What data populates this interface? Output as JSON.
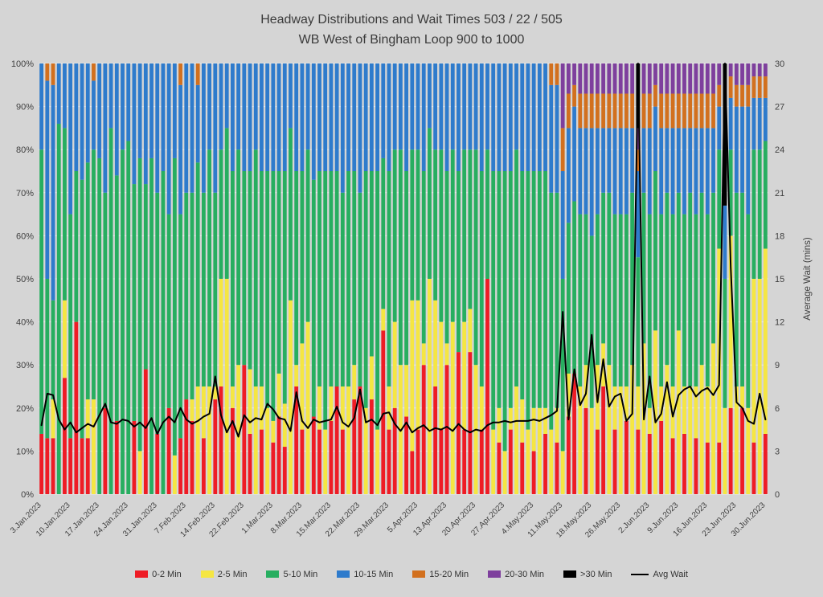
{
  "colors": {
    "background": "#d5d5d5",
    "grid": "#ffffff",
    "text": "#3a3a3a",
    "axis_text": "#3f3f3f"
  },
  "chart_data": {
    "type": "bar",
    "stacked": true,
    "stack_unit": "percent",
    "overlay_line": true,
    "grid": true,
    "legend_position": "bottom",
    "title": "Headway Distributions and Wait Times 503 / 22 / 505",
    "subtitle": "WB West of Bingham Loop 900 to 1000",
    "ylabel_right": "Average Wait (mins)",
    "ylim_left_percent": [
      0,
      100
    ],
    "ylim_right": [
      0,
      30
    ],
    "y_ticks_left": [
      "0%",
      "10%",
      "20%",
      "30%",
      "40%",
      "50%",
      "60%",
      "70%",
      "80%",
      "90%",
      "100%"
    ],
    "y_ticks_right": [
      "0",
      "3",
      "6",
      "9",
      "12",
      "15",
      "18",
      "21",
      "24",
      "27",
      "30"
    ],
    "x_tick_every": 5,
    "x_tick_labels": [
      "3.Jan.2023",
      "10.Jan.2023",
      "17.Jan.2023",
      "24.Jan.2023",
      "31.Jan.2023",
      "7.Feb.2023",
      "14.Feb.2023",
      "22.Feb.2023",
      "1.Mar.2023",
      "8.Mar.2023",
      "15.Mar.2023",
      "22.Mar.2023",
      "29.Mar.2023",
      "5.Apr.2023",
      "13.Apr.2023",
      "20.Apr.2023",
      "27.Apr.2023",
      "4.May.2023",
      "11.May.2023",
      "18.May.2023",
      "26.May.2023",
      "2.Jun.2023",
      "9.Jun.2023",
      "16.Jun.2023",
      "23.Jun.2023",
      "30.Jun.2023"
    ],
    "series": [
      {
        "name": "0-2 Min",
        "color": "#ee1c25",
        "values": [
          14,
          13,
          13,
          0,
          27,
          13,
          40,
          13,
          13,
          0,
          0,
          20,
          0,
          17,
          0,
          0,
          17,
          0,
          29,
          0,
          14,
          0,
          20,
          0,
          13,
          22,
          17,
          0,
          13,
          0,
          22,
          25,
          0,
          20,
          0,
          30,
          14,
          0,
          15,
          0,
          12,
          18,
          11,
          0,
          25,
          15,
          0,
          18,
          15,
          0,
          17,
          25,
          15,
          0,
          22,
          25,
          0,
          22,
          0,
          38,
          15,
          20,
          0,
          18,
          10,
          15,
          30,
          0,
          25,
          15,
          30,
          0,
          33,
          15,
          33,
          0,
          15,
          50,
          0,
          12,
          0,
          15,
          0,
          12,
          0,
          10,
          0,
          14,
          0,
          12,
          0,
          18,
          28,
          0,
          20,
          0,
          15,
          25,
          0,
          15,
          0,
          17,
          0,
          15,
          0,
          14,
          0,
          17,
          0,
          13,
          0,
          14,
          0,
          13,
          0,
          12,
          0,
          12,
          0,
          20,
          0,
          20,
          0,
          12,
          0,
          14
        ]
      },
      {
        "name": "2-5 Min",
        "color": "#f5e642",
        "values": [
          0,
          0,
          9,
          0,
          18,
          0,
          0,
          0,
          9,
          22,
          0,
          0,
          0,
          0,
          0,
          0,
          0,
          10,
          0,
          0,
          0,
          0,
          0,
          9,
          0,
          0,
          5,
          25,
          12,
          25,
          3,
          25,
          50,
          5,
          30,
          0,
          15,
          25,
          10,
          20,
          5,
          10,
          10,
          45,
          5,
          20,
          40,
          0,
          10,
          15,
          8,
          0,
          10,
          25,
          8,
          0,
          20,
          10,
          15,
          5,
          10,
          20,
          30,
          12,
          35,
          30,
          5,
          50,
          20,
          25,
          5,
          40,
          0,
          25,
          10,
          30,
          10,
          0,
          15,
          8,
          10,
          5,
          25,
          10,
          15,
          10,
          20,
          6,
          15,
          8,
          10,
          10,
          0,
          25,
          10,
          20,
          15,
          10,
          30,
          10,
          25,
          8,
          30,
          10,
          35,
          6,
          38,
          8,
          30,
          12,
          38,
          11,
          25,
          12,
          30,
          13,
          35,
          45,
          20,
          40,
          25,
          5,
          20,
          38,
          50,
          43
        ]
      },
      {
        "name": "5-10 Min",
        "color": "#27ae60",
        "values": [
          66,
          37,
          23,
          86,
          40,
          52,
          35,
          60,
          55,
          58,
          78,
          50,
          85,
          57,
          80,
          82,
          55,
          68,
          43,
          78,
          56,
          75,
          45,
          69,
          52,
          48,
          48,
          52,
          45,
          55,
          45,
          30,
          35,
          50,
          50,
          45,
          46,
          55,
          50,
          55,
          58,
          47,
          54,
          40,
          45,
          40,
          40,
          55,
          50,
          60,
          50,
          50,
          45,
          50,
          45,
          45,
          55,
          43,
          60,
          35,
          50,
          40,
          50,
          45,
          35,
          35,
          40,
          35,
          35,
          40,
          40,
          40,
          42,
          40,
          37,
          50,
          50,
          30,
          60,
          55,
          65,
          55,
          55,
          53,
          60,
          55,
          55,
          55,
          55,
          50,
          40,
          35,
          40,
          40,
          35,
          40,
          35,
          35,
          40,
          40,
          40,
          40,
          40,
          30,
          35,
          45,
          37,
          40,
          40,
          40,
          32,
          40,
          45,
          40,
          40,
          40,
          35,
          23,
          30,
          20,
          45,
          45,
          45,
          30,
          30,
          25
        ]
      },
      {
        "name": "10-15 Min",
        "color": "#2e7bcc",
        "values": [
          20,
          46,
          50,
          14,
          15,
          35,
          25,
          27,
          23,
          16,
          22,
          30,
          15,
          26,
          20,
          18,
          28,
          22,
          28,
          22,
          30,
          25,
          35,
          22,
          30,
          30,
          30,
          18,
          30,
          20,
          30,
          20,
          15,
          25,
          20,
          25,
          25,
          20,
          25,
          25,
          25,
          25,
          25,
          15,
          25,
          25,
          20,
          27,
          25,
          25,
          25,
          25,
          30,
          25,
          25,
          30,
          25,
          25,
          25,
          22,
          25,
          20,
          20,
          25,
          20,
          20,
          25,
          15,
          20,
          20,
          25,
          20,
          25,
          20,
          20,
          20,
          25,
          20,
          25,
          25,
          25,
          25,
          20,
          25,
          25,
          25,
          25,
          25,
          25,
          25,
          25,
          22,
          22,
          20,
          20,
          25,
          20,
          15,
          15,
          20,
          20,
          20,
          15,
          20,
          15,
          20,
          15,
          20,
          15,
          20,
          15,
          20,
          15,
          20,
          15,
          20,
          15,
          10,
          17,
          12,
          20,
          20,
          25,
          12,
          12,
          10
        ]
      },
      {
        "name": "15-20 Min",
        "color": "#d2701e",
        "values": [
          0,
          4,
          5,
          0,
          0,
          0,
          0,
          0,
          0,
          4,
          0,
          0,
          0,
          0,
          0,
          0,
          0,
          0,
          0,
          0,
          0,
          0,
          0,
          0,
          5,
          0,
          0,
          5,
          0,
          0,
          0,
          0,
          0,
          0,
          0,
          0,
          0,
          0,
          0,
          0,
          0,
          0,
          0,
          0,
          0,
          0,
          0,
          0,
          0,
          0,
          0,
          0,
          0,
          0,
          0,
          0,
          0,
          0,
          0,
          0,
          0,
          0,
          0,
          0,
          0,
          0,
          0,
          0,
          0,
          0,
          0,
          0,
          0,
          0,
          0,
          0,
          0,
          0,
          0,
          0,
          0,
          0,
          0,
          0,
          0,
          0,
          0,
          0,
          5,
          5,
          10,
          8,
          5,
          8,
          8,
          8,
          8,
          8,
          8,
          8,
          8,
          8,
          8,
          5,
          8,
          8,
          5,
          8,
          8,
          8,
          8,
          8,
          8,
          8,
          8,
          8,
          8,
          5,
          0,
          5,
          5,
          5,
          5,
          5,
          5,
          5
        ]
      },
      {
        "name": "20-30 Min",
        "color": "#7e3f9d",
        "values": [
          0,
          0,
          0,
          0,
          0,
          0,
          0,
          0,
          0,
          0,
          0,
          0,
          0,
          0,
          0,
          0,
          0,
          0,
          0,
          0,
          0,
          0,
          0,
          0,
          0,
          0,
          0,
          0,
          0,
          0,
          0,
          0,
          0,
          0,
          0,
          0,
          0,
          0,
          0,
          0,
          0,
          0,
          0,
          0,
          0,
          0,
          0,
          0,
          0,
          0,
          0,
          0,
          0,
          0,
          0,
          0,
          0,
          0,
          0,
          0,
          0,
          0,
          0,
          0,
          0,
          0,
          0,
          0,
          0,
          0,
          0,
          0,
          0,
          0,
          0,
          0,
          0,
          0,
          0,
          0,
          0,
          0,
          0,
          0,
          0,
          0,
          0,
          0,
          0,
          0,
          15,
          7,
          5,
          7,
          7,
          7,
          7,
          7,
          7,
          7,
          7,
          7,
          7,
          5,
          7,
          7,
          5,
          7,
          7,
          7,
          7,
          7,
          7,
          7,
          7,
          7,
          7,
          5,
          0,
          3,
          5,
          5,
          5,
          3,
          3,
          3
        ]
      },
      {
        "name": ">30 Min",
        "color": "#000000",
        "values": [
          0,
          0,
          0,
          0,
          0,
          0,
          0,
          0,
          0,
          0,
          0,
          0,
          0,
          0,
          0,
          0,
          0,
          0,
          0,
          0,
          0,
          0,
          0,
          0,
          0,
          0,
          0,
          0,
          0,
          0,
          0,
          0,
          0,
          0,
          0,
          0,
          0,
          0,
          0,
          0,
          0,
          0,
          0,
          0,
          0,
          0,
          0,
          0,
          0,
          0,
          0,
          0,
          0,
          0,
          0,
          0,
          0,
          0,
          0,
          0,
          0,
          0,
          0,
          0,
          0,
          0,
          0,
          0,
          0,
          0,
          0,
          0,
          0,
          0,
          0,
          0,
          0,
          0,
          0,
          0,
          0,
          0,
          0,
          0,
          0,
          0,
          0,
          0,
          0,
          0,
          0,
          0,
          0,
          0,
          0,
          0,
          0,
          0,
          0,
          0,
          0,
          0,
          0,
          15,
          0,
          0,
          0,
          0,
          0,
          0,
          0,
          0,
          0,
          0,
          0,
          0,
          0,
          0,
          33,
          0,
          0,
          0,
          0,
          0,
          0,
          0
        ]
      }
    ],
    "line_series": {
      "name": "Avg Wait",
      "color": "#000000",
      "axis": "right",
      "values": [
        4.8,
        7.0,
        6.9,
        5.2,
        4.5,
        5.0,
        4.3,
        4.6,
        4.9,
        4.7,
        5.5,
        6.3,
        5.0,
        4.9,
        5.2,
        5.1,
        4.7,
        5.0,
        4.6,
        5.3,
        4.2,
        5.0,
        5.4,
        5.0,
        6.0,
        5.2,
        4.9,
        5.1,
        5.4,
        5.6,
        8.2,
        5.5,
        4.3,
        5.1,
        4.0,
        5.5,
        5.0,
        5.3,
        5.2,
        6.3,
        5.9,
        5.3,
        5.2,
        4.4,
        7.1,
        5.1,
        4.6,
        5.2,
        5.0,
        5.1,
        5.2,
        6.1,
        5.0,
        4.7,
        5.3,
        7.3,
        5.0,
        5.2,
        4.8,
        5.6,
        5.7,
        4.9,
        4.4,
        5.0,
        4.3,
        4.6,
        4.8,
        4.4,
        4.6,
        4.5,
        4.7,
        4.4,
        4.9,
        4.5,
        4.3,
        4.5,
        4.4,
        4.8,
        5.0,
        5.0,
        5.1,
        5.0,
        5.1,
        5.1,
        5.1,
        5.2,
        5.1,
        5.3,
        5.5,
        5.8,
        12.7,
        5.2,
        8.7,
        6.2,
        7.0,
        11.1,
        6.4,
        9.4,
        6.1,
        6.8,
        7.0,
        5.1,
        5.6,
        30.0,
        5.2,
        8.2,
        5.0,
        5.6,
        7.8,
        5.4,
        6.9,
        7.3,
        7.5,
        6.8,
        7.2,
        7.4,
        6.9,
        7.6,
        30.0,
        15.8,
        6.4,
        6.0,
        5.1,
        4.9,
        7.0,
        5.2
      ]
    },
    "legend": [
      "0-2 Min",
      "2-5 Min",
      "5-10 Min",
      "10-15 Min",
      "15-20 Min",
      "20-30 Min",
      ">30 Min",
      "Avg Wait"
    ]
  }
}
